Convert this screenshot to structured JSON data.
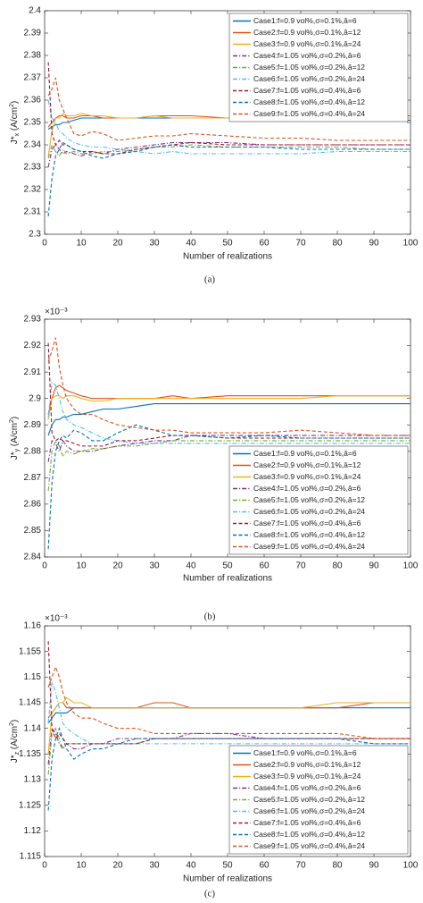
{
  "chart_data": [
    {
      "type": "line",
      "caption": "(a)",
      "xlabel": "Number of realizations",
      "ylabel_parts": [
        "J*",
        "x",
        " (A/cm",
        "2",
        ")"
      ],
      "x": [
        1,
        2,
        3,
        4,
        5,
        6,
        8,
        10,
        13,
        16,
        20,
        25,
        30,
        35,
        40,
        50,
        60,
        70,
        80,
        90,
        100
      ],
      "xlim": [
        0,
        100
      ],
      "xticks": [
        0,
        10,
        20,
        30,
        40,
        50,
        60,
        70,
        80,
        90,
        100
      ],
      "ylim": [
        2.3,
        2.4
      ],
      "yticks": [
        2.3,
        2.31,
        2.32,
        2.33,
        2.34,
        2.35,
        2.36,
        2.37,
        2.38,
        2.39,
        2.4
      ],
      "legend": "upper right",
      "grid": false,
      "series": [
        {
          "name": "Case1:f=0.9 vol%,σ=0.1%,â=6",
          "color": "#0072BD",
          "dash": "solid",
          "values": [
            2.347,
            2.348,
            2.349,
            2.349,
            2.35,
            2.35,
            2.351,
            2.352,
            2.352,
            2.352,
            2.352,
            2.352,
            2.352,
            2.352,
            2.352,
            2.352,
            2.352,
            2.352,
            2.351,
            2.351,
            2.351
          ]
        },
        {
          "name": "Case2:f=0.9 vol%,σ=0.1%,â=12",
          "color": "#D95319",
          "dash": "solid",
          "values": [
            2.348,
            2.35,
            2.352,
            2.353,
            2.353,
            2.352,
            2.352,
            2.353,
            2.353,
            2.352,
            2.352,
            2.352,
            2.353,
            2.353,
            2.353,
            2.352,
            2.352,
            2.352,
            2.353,
            2.353,
            2.353
          ]
        },
        {
          "name": "Case3:f=0.9 vol%,σ=0.1%,â=24",
          "color": "#EDB120",
          "dash": "solid",
          "values": [
            2.335,
            2.346,
            2.352,
            2.352,
            2.354,
            2.353,
            2.353,
            2.354,
            2.353,
            2.353,
            2.352,
            2.352,
            2.353,
            2.352,
            2.352,
            2.352,
            2.352,
            2.352,
            2.352,
            2.352,
            2.352
          ]
        },
        {
          "name": "Case4:f=1.05 vol%,σ=0.2%,â=6",
          "color": "#7E2F8E",
          "dash": "dashdot",
          "values": [
            2.33,
            2.338,
            2.34,
            2.338,
            2.336,
            2.337,
            2.336,
            2.335,
            2.337,
            2.336,
            2.338,
            2.339,
            2.34,
            2.341,
            2.341,
            2.341,
            2.34,
            2.34,
            2.34,
            2.34,
            2.34
          ]
        },
        {
          "name": "Case5:f=1.05 vol%,σ=0.2%,â=12",
          "color": "#77AC30",
          "dash": "dashdot",
          "values": [
            2.334,
            2.34,
            2.337,
            2.335,
            2.338,
            2.336,
            2.337,
            2.336,
            2.336,
            2.337,
            2.337,
            2.338,
            2.339,
            2.339,
            2.34,
            2.339,
            2.339,
            2.339,
            2.339,
            2.338,
            2.338
          ]
        },
        {
          "name": "Case6:f=1.05 vol%,σ=0.2%,â=24",
          "color": "#4DBEEE",
          "dash": "dashdot",
          "values": [
            2.36,
            2.352,
            2.35,
            2.346,
            2.345,
            2.343,
            2.341,
            2.34,
            2.339,
            2.339,
            2.338,
            2.337,
            2.336,
            2.337,
            2.336,
            2.336,
            2.336,
            2.336,
            2.337,
            2.337,
            2.337
          ]
        },
        {
          "name": "Case7:f=1.05 vol%,σ=0.4%,â=6",
          "color": "#A2142F",
          "dash": "dashed",
          "values": [
            2.377,
            2.345,
            2.34,
            2.342,
            2.34,
            2.34,
            2.338,
            2.337,
            2.337,
            2.336,
            2.336,
            2.338,
            2.339,
            2.34,
            2.341,
            2.34,
            2.34,
            2.34,
            2.34,
            2.34,
            2.34
          ]
        },
        {
          "name": "Case8:f=1.05 vol%,σ=0.4%,â=12",
          "color": "#0072BD",
          "dash": "dashed",
          "values": [
            2.308,
            2.325,
            2.335,
            2.338,
            2.341,
            2.34,
            2.338,
            2.337,
            2.335,
            2.334,
            2.336,
            2.337,
            2.339,
            2.34,
            2.339,
            2.339,
            2.339,
            2.338,
            2.338,
            2.338,
            2.338
          ]
        },
        {
          "name": "Case9:f=1.05 vol%,σ=0.4%,â=24",
          "color": "#D95319",
          "dash": "dashed",
          "values": [
            2.362,
            2.365,
            2.37,
            2.36,
            2.356,
            2.352,
            2.345,
            2.344,
            2.346,
            2.345,
            2.342,
            2.343,
            2.344,
            2.344,
            2.345,
            2.344,
            2.343,
            2.343,
            2.342,
            2.342,
            2.342
          ]
        }
      ]
    },
    {
      "type": "line",
      "caption": "(b)",
      "xlabel": "Number of realizations",
      "ylabel_parts": [
        "J*",
        "y",
        " (A/cm",
        "2",
        ")"
      ],
      "y_multiplier": "×10⁻³",
      "x": [
        1,
        2,
        3,
        4,
        5,
        6,
        8,
        10,
        13,
        16,
        20,
        25,
        30,
        35,
        40,
        50,
        60,
        70,
        80,
        90,
        100
      ],
      "xlim": [
        0,
        100
      ],
      "xticks": [
        0,
        10,
        20,
        30,
        40,
        50,
        60,
        70,
        80,
        90,
        100
      ],
      "ylim": [
        2.84,
        2.93
      ],
      "yticks": [
        2.84,
        2.85,
        2.86,
        2.87,
        2.88,
        2.89,
        2.9,
        2.91,
        2.92,
        2.93
      ],
      "legend": "lower right",
      "grid": false,
      "series": [
        {
          "name": "Case1:f=0.9 vol%,σ=0.1%,â=6",
          "color": "#0072BD",
          "dash": "solid",
          "values": [
            2.886,
            2.89,
            2.892,
            2.892,
            2.893,
            2.893,
            2.894,
            2.894,
            2.895,
            2.896,
            2.896,
            2.897,
            2.898,
            2.898,
            2.898,
            2.898,
            2.898,
            2.898,
            2.898,
            2.898,
            2.898
          ]
        },
        {
          "name": "Case2:f=0.9 vol%,σ=0.1%,â=12",
          "color": "#D95319",
          "dash": "solid",
          "values": [
            2.894,
            2.9,
            2.904,
            2.905,
            2.904,
            2.903,
            2.902,
            2.901,
            2.9,
            2.9,
            2.9,
            2.9,
            2.9,
            2.901,
            2.9,
            2.901,
            2.901,
            2.901,
            2.901,
            2.901,
            2.901
          ]
        },
        {
          "name": "Case3:f=0.9 vol%,σ=0.1%,â=24",
          "color": "#EDB120",
          "dash": "solid",
          "values": [
            2.892,
            2.9,
            2.901,
            2.901,
            2.9,
            2.901,
            2.901,
            2.9,
            2.899,
            2.899,
            2.9,
            2.9,
            2.9,
            2.9,
            2.9,
            2.9,
            2.9,
            2.9,
            2.901,
            2.901,
            2.901
          ]
        },
        {
          "name": "Case4:f=1.05 vol%,σ=0.2%,â=6",
          "color": "#7E2F8E",
          "dash": "dashdot",
          "values": [
            2.876,
            2.884,
            2.883,
            2.88,
            2.884,
            2.882,
            2.88,
            2.88,
            2.88,
            2.881,
            2.882,
            2.883,
            2.884,
            2.884,
            2.886,
            2.886,
            2.886,
            2.886,
            2.886,
            2.886,
            2.886
          ]
        },
        {
          "name": "Case5:f=1.05 vol%,σ=0.2%,â=12",
          "color": "#77AC30",
          "dash": "dashdot",
          "values": [
            2.865,
            2.88,
            2.884,
            2.882,
            2.878,
            2.88,
            2.879,
            2.88,
            2.881,
            2.881,
            2.882,
            2.882,
            2.883,
            2.884,
            2.884,
            2.884,
            2.884,
            2.884,
            2.884,
            2.884,
            2.884
          ]
        },
        {
          "name": "Case6:f=1.05 vol%,σ=0.2%,â=24",
          "color": "#4DBEEE",
          "dash": "dashdot",
          "values": [
            2.893,
            2.906,
            2.905,
            2.9,
            2.895,
            2.892,
            2.89,
            2.889,
            2.887,
            2.885,
            2.884,
            2.883,
            2.883,
            2.883,
            2.883,
            2.883,
            2.883,
            2.883,
            2.883,
            2.883,
            2.883
          ]
        },
        {
          "name": "Case7:f=1.05 vol%,σ=0.4%,â=6",
          "color": "#A2142F",
          "dash": "dashed",
          "values": [
            2.921,
            2.887,
            2.884,
            2.885,
            2.884,
            2.884,
            2.883,
            2.882,
            2.882,
            2.882,
            2.884,
            2.884,
            2.885,
            2.886,
            2.886,
            2.885,
            2.885,
            2.885,
            2.885,
            2.885,
            2.885
          ]
        },
        {
          "name": "Case8:f=1.05 vol%,σ=0.4%,â=12",
          "color": "#0072BD",
          "dash": "dashed",
          "values": [
            2.843,
            2.868,
            2.88,
            2.884,
            2.886,
            2.885,
            2.888,
            2.887,
            2.884,
            2.884,
            2.887,
            2.89,
            2.888,
            2.886,
            2.886,
            2.885,
            2.886,
            2.885,
            2.885,
            2.885,
            2.885
          ]
        },
        {
          "name": "Case9:f=1.05 vol%,σ=0.4%,â=24",
          "color": "#D95319",
          "dash": "dashed",
          "values": [
            2.914,
            2.918,
            2.923,
            2.912,
            2.905,
            2.9,
            2.896,
            2.894,
            2.894,
            2.892,
            2.89,
            2.889,
            2.888,
            2.888,
            2.887,
            2.887,
            2.887,
            2.888,
            2.887,
            2.886,
            2.886
          ]
        }
      ]
    },
    {
      "type": "line",
      "caption": "(c)",
      "xlabel": "Number of realizations",
      "ylabel_parts": [
        "J*",
        "z",
        " (A/cm",
        "2",
        ")"
      ],
      "y_multiplier": "×10⁻³",
      "x": [
        1,
        2,
        3,
        4,
        5,
        6,
        8,
        10,
        13,
        16,
        20,
        25,
        30,
        35,
        40,
        50,
        60,
        70,
        80,
        90,
        100
      ],
      "xlim": [
        0,
        100
      ],
      "xticks": [
        0,
        10,
        20,
        30,
        40,
        50,
        60,
        70,
        80,
        90,
        100
      ],
      "ylim": [
        1.115,
        1.16
      ],
      "yticks": [
        1.115,
        1.12,
        1.125,
        1.13,
        1.135,
        1.14,
        1.145,
        1.15,
        1.155,
        1.16
      ],
      "legend": "lower right",
      "grid": false,
      "series": [
        {
          "name": "Case1:f=0.9 vol%,σ=0.1%,â=6",
          "color": "#0072BD",
          "dash": "solid",
          "values": [
            1.141,
            1.142,
            1.143,
            1.143,
            1.143,
            1.143,
            1.144,
            1.144,
            1.144,
            1.144,
            1.144,
            1.144,
            1.144,
            1.144,
            1.144,
            1.144,
            1.144,
            1.144,
            1.144,
            1.144,
            1.144
          ]
        },
        {
          "name": "Case2:f=0.9 vol%,σ=0.1%,â=12",
          "color": "#D95319",
          "dash": "solid",
          "values": [
            1.142,
            1.143,
            1.144,
            1.145,
            1.145,
            1.144,
            1.144,
            1.144,
            1.144,
            1.144,
            1.144,
            1.144,
            1.145,
            1.145,
            1.144,
            1.144,
            1.144,
            1.144,
            1.144,
            1.145,
            1.145
          ]
        },
        {
          "name": "Case3:f=0.9 vol%,σ=0.1%,â=24",
          "color": "#EDB120",
          "dash": "solid",
          "values": [
            1.135,
            1.143,
            1.144,
            1.145,
            1.145,
            1.146,
            1.145,
            1.145,
            1.144,
            1.144,
            1.144,
            1.144,
            1.144,
            1.144,
            1.144,
            1.144,
            1.144,
            1.144,
            1.145,
            1.145,
            1.145
          ]
        },
        {
          "name": "Case4:f=1.05 vol%,σ=0.2%,â=6",
          "color": "#7E2F8E",
          "dash": "dashdot",
          "values": [
            1.133,
            1.14,
            1.139,
            1.137,
            1.136,
            1.137,
            1.136,
            1.136,
            1.137,
            1.137,
            1.138,
            1.138,
            1.138,
            1.138,
            1.139,
            1.139,
            1.138,
            1.138,
            1.138,
            1.138,
            1.138
          ]
        },
        {
          "name": "Case5:f=1.05 vol%,σ=0.2%,â=12",
          "color": "#77AC30",
          "dash": "dashdot",
          "values": [
            1.131,
            1.139,
            1.14,
            1.138,
            1.136,
            1.137,
            1.137,
            1.137,
            1.137,
            1.137,
            1.137,
            1.137,
            1.138,
            1.138,
            1.138,
            1.138,
            1.138,
            1.138,
            1.138,
            1.138,
            1.138
          ]
        },
        {
          "name": "Case6:f=1.05 vol%,σ=0.2%,â=24",
          "color": "#4DBEEE",
          "dash": "dashdot",
          "values": [
            1.141,
            1.149,
            1.147,
            1.144,
            1.141,
            1.14,
            1.139,
            1.138,
            1.137,
            1.137,
            1.137,
            1.137,
            1.137,
            1.137,
            1.137,
            1.137,
            1.137,
            1.137,
            1.137,
            1.137,
            1.137
          ]
        },
        {
          "name": "Case7:f=1.05 vol%,σ=0.4%,â=6",
          "color": "#A2142F",
          "dash": "dashed",
          "values": [
            1.157,
            1.14,
            1.138,
            1.139,
            1.138,
            1.137,
            1.137,
            1.137,
            1.137,
            1.137,
            1.137,
            1.137,
            1.138,
            1.138,
            1.138,
            1.138,
            1.138,
            1.138,
            1.138,
            1.138,
            1.138
          ]
        },
        {
          "name": "Case8:f=1.05 vol%,σ=0.4%,â=12",
          "color": "#0072BD",
          "dash": "dashed",
          "values": [
            1.124,
            1.134,
            1.138,
            1.14,
            1.138,
            1.136,
            1.134,
            1.135,
            1.136,
            1.136,
            1.137,
            1.138,
            1.138,
            1.138,
            1.138,
            1.138,
            1.138,
            1.138,
            1.138,
            1.137,
            1.137
          ]
        },
        {
          "name": "Case9:f=1.05 vol%,σ=0.4%,â=24",
          "color": "#D95319",
          "dash": "dashed",
          "values": [
            1.148,
            1.15,
            1.152,
            1.15,
            1.147,
            1.145,
            1.143,
            1.142,
            1.142,
            1.141,
            1.14,
            1.14,
            1.139,
            1.139,
            1.139,
            1.139,
            1.139,
            1.139,
            1.139,
            1.138,
            1.138
          ]
        }
      ]
    }
  ]
}
